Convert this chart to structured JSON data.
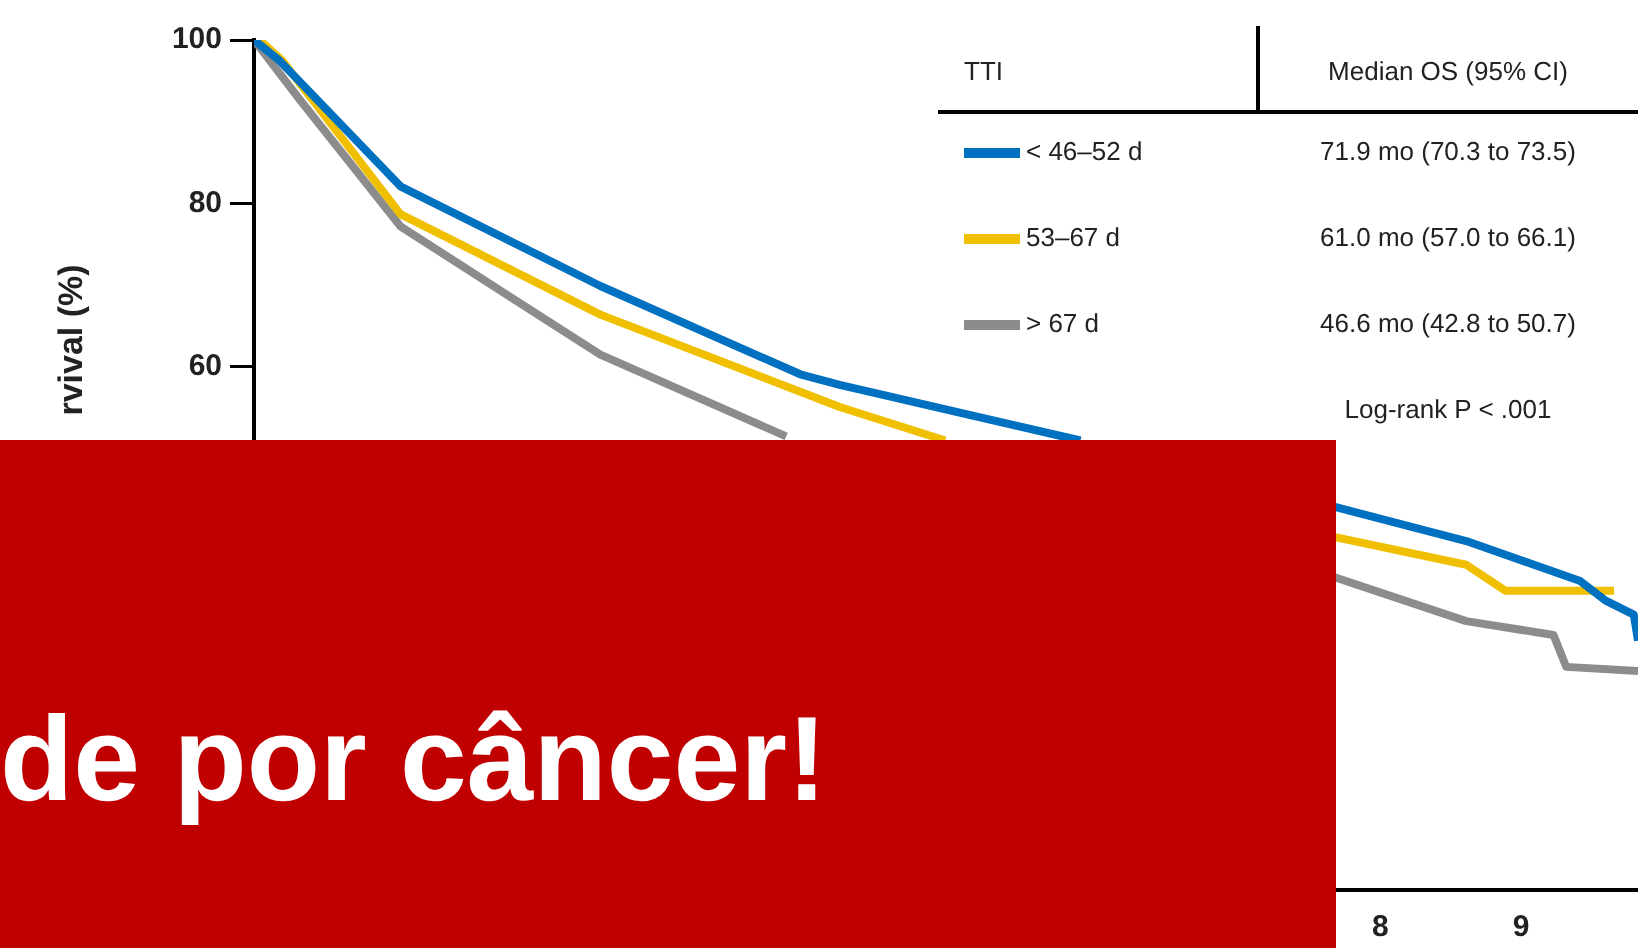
{
  "chart_data": {
    "type": "line",
    "ylabel": "rvival (%)",
    "legend_title": "TTI",
    "legend": "top right",
    "grid": false,
    "marker": "none",
    "line_style": "solid",
    "xlim": [
      0,
      9.83
    ],
    "xticks": [
      8,
      9
    ],
    "ylim": [
      -4,
      100
    ],
    "yticks": [
      60,
      80,
      100
    ],
    "annotations": [
      "Median OS (95% CI)",
      "71.9 mo (70.3 to 73.5)",
      "61.0 mo (57.0 to 66.1)",
      "46.6 mo (42.8 to 50.7)",
      "Log-rank P < .001",
      "de por câncer!"
    ],
    "series": [
      {
        "name": "< 46–52 d",
        "color": "#0070c0",
        "x": [
          0,
          0.18,
          1.04,
          2.46,
          3.88,
          4.16,
          5.87,
          6.5,
          7.67,
          8.61,
          9.42,
          9.6,
          9.8,
          9.83
        ],
        "values": [
          100,
          97.5,
          82.1,
          69.9,
          59.1,
          57.8,
          51,
          null,
          42.9,
          38.7,
          33.8,
          31.4,
          29.7,
          26.5
        ]
      },
      {
        "name": "53–67 d",
        "color": "#f0c000",
        "x": [
          0.04,
          0.2,
          1.04,
          2.46,
          4.16,
          4.91,
          6.5,
          7.67,
          8.61,
          8.89,
          9.66
        ],
        "values": [
          100,
          97.5,
          78.7,
          66.4,
          55.1,
          51,
          null,
          39.2,
          35.8,
          32.6,
          32.6
        ]
      },
      {
        "name": "> 67 d",
        "color": "#8c8c8c",
        "x": [
          0,
          0.33,
          1.04,
          2.46,
          3.78,
          6.5,
          7.67,
          8.61,
          9.23,
          9.32,
          9.83
        ],
        "values": [
          100,
          92.6,
          77.2,
          61.5,
          51.5,
          null,
          34.3,
          28.9,
          27.2,
          23.3,
          22.8
        ]
      }
    ]
  }
}
